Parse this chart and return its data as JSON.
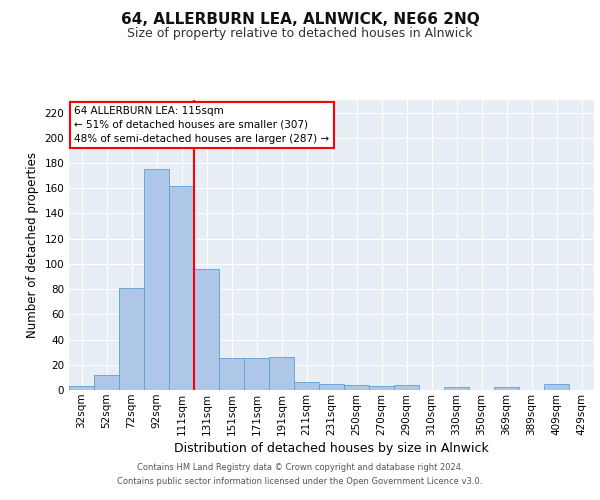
{
  "title": "64, ALLERBURN LEA, ALNWICK, NE66 2NQ",
  "subtitle": "Size of property relative to detached houses in Alnwick",
  "xlabel": "Distribution of detached houses by size in Alnwick",
  "ylabel": "Number of detached properties",
  "categories": [
    "32sqm",
    "52sqm",
    "72sqm",
    "92sqm",
    "111sqm",
    "131sqm",
    "151sqm",
    "171sqm",
    "191sqm",
    "211sqm",
    "231sqm",
    "250sqm",
    "270sqm",
    "290sqm",
    "310sqm",
    "330sqm",
    "350sqm",
    "369sqm",
    "389sqm",
    "409sqm",
    "429sqm"
  ],
  "values": [
    3,
    12,
    81,
    175,
    162,
    96,
    25,
    25,
    26,
    6,
    5,
    4,
    3,
    4,
    0,
    2,
    0,
    2,
    0,
    5,
    0
  ],
  "bar_color": "#aec6e8",
  "bar_edge_color": "#5a9fd4",
  "vline_x_index": 4.5,
  "vline_color": "red",
  "annotation_text": "64 ALLERBURN LEA: 115sqm\n← 51% of detached houses are smaller (307)\n48% of semi-detached houses are larger (287) →",
  "annotation_box_color": "white",
  "annotation_box_edge": "red",
  "ylim": [
    0,
    230
  ],
  "yticks": [
    0,
    20,
    40,
    60,
    80,
    100,
    120,
    140,
    160,
    180,
    200,
    220
  ],
  "background_color": "#e8eef5",
  "footer_line1": "Contains HM Land Registry data © Crown copyright and database right 2024.",
  "footer_line2": "Contains public sector information licensed under the Open Government Licence v3.0.",
  "title_fontsize": 11,
  "subtitle_fontsize": 9,
  "xlabel_fontsize": 9,
  "ylabel_fontsize": 8.5,
  "tick_fontsize": 7.5,
  "annotation_fontsize": 7.5
}
